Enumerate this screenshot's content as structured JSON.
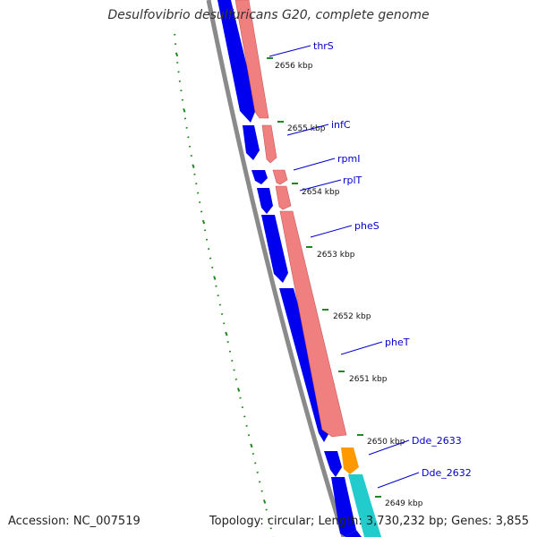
{
  "title": "Desulfovibrio desulfuricans G20, complete genome",
  "footer": {
    "accession": "Accession: NC_007519",
    "summary": "Topology: circular; Length: 3,730,232 bp; Genes: 3,855"
  },
  "colors": {
    "forward_cds": "#f08080",
    "reverse_cds": "#0000ee",
    "backbone": "#8a8a8a",
    "gc_skew_marks": "#228822",
    "orange_gene": "#ff9900",
    "cyan_gene": "#22cccc",
    "label_line": "#0000cc"
  },
  "scale_unit": "kbp",
  "tick_labels": [
    "2656 kbp",
    "2655 kbp",
    "2654 kbp",
    "2653 kbp",
    "2652 kbp",
    "2651 kbp",
    "2650 kbp",
    "2649 kbp"
  ],
  "gene_labels": [
    "thrS",
    "infC",
    "rpmI",
    "rplT",
    "pheS",
    "pheT",
    "Dde_2633",
    "Dde_2632"
  ]
}
